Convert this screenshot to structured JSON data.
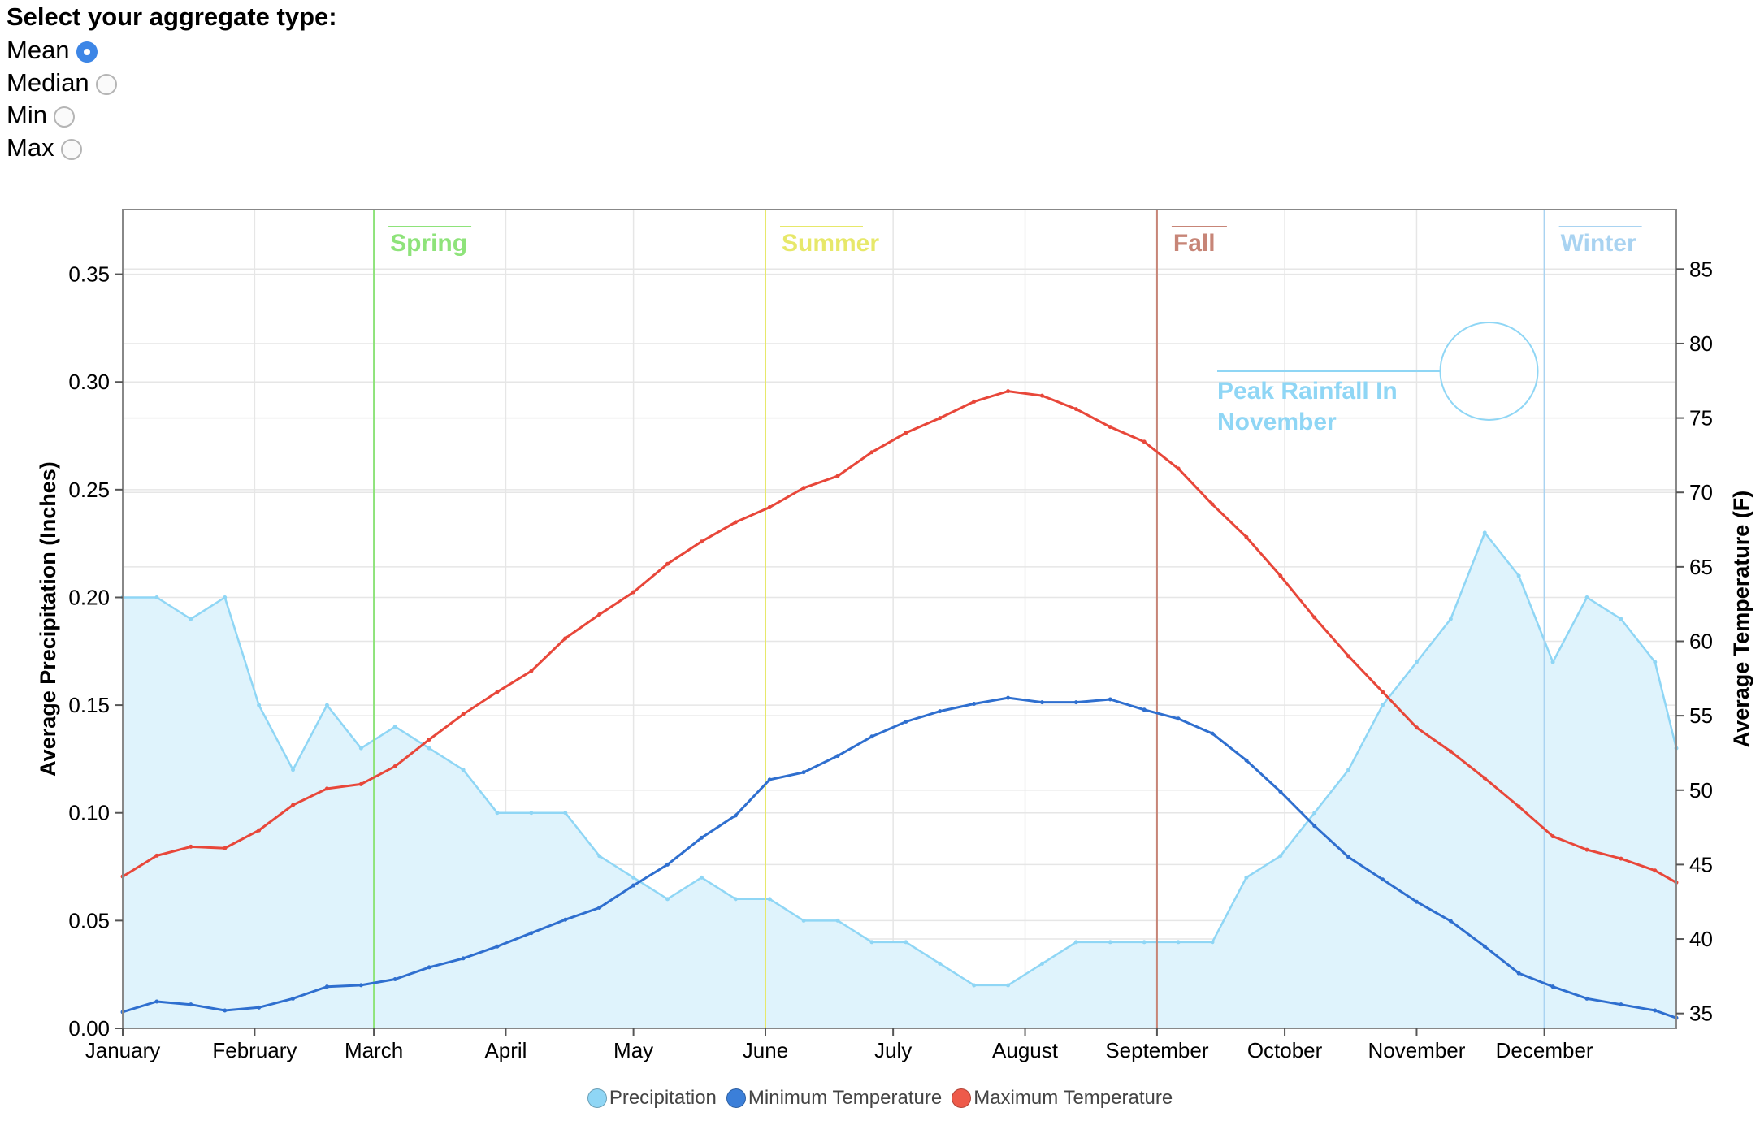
{
  "controls": {
    "title": "Select your aggregate type:",
    "options": [
      {
        "label": "Mean",
        "checked": true
      },
      {
        "label": "Median",
        "checked": false
      },
      {
        "label": "Min",
        "checked": false
      },
      {
        "label": "Max",
        "checked": false
      }
    ]
  },
  "legend": [
    {
      "label": "Precipitation",
      "color": "#8fd6f5"
    },
    {
      "label": "Minimum Temperature",
      "color": "#3b7fd9"
    },
    {
      "label": "Maximum Temperature",
      "color": "#ee5a4a"
    }
  ],
  "colors": {
    "precip_line": "#8fd6f5",
    "precip_fill": "#dff3fc",
    "min_temp": "#2f6fcf",
    "max_temp": "#e8473a",
    "spring": "#8ee37a",
    "summer": "#e7e86a",
    "fall": "#c78577",
    "winter": "#a9d3f1",
    "annotation": "#8fd6f5",
    "grid": "#e6e6e6"
  },
  "chart_data": {
    "type": "line",
    "x_range_days": [
      1,
      366
    ],
    "x_ticks": [
      {
        "label": "January",
        "day": 1
      },
      {
        "label": "February",
        "day": 32
      },
      {
        "label": "March",
        "day": 60
      },
      {
        "label": "April",
        "day": 91
      },
      {
        "label": "May",
        "day": 121
      },
      {
        "label": "June",
        "day": 152
      },
      {
        "label": "July",
        "day": 182
      },
      {
        "label": "August",
        "day": 213
      },
      {
        "label": "September",
        "day": 244
      },
      {
        "label": "October",
        "day": 274
      },
      {
        "label": "November",
        "day": 305
      },
      {
        "label": "December",
        "day": 335
      }
    ],
    "y_left": {
      "label": "Average Precipitation (Inches)",
      "range": [
        0,
        0.38
      ],
      "ticks": [
        "0.00",
        "0.05",
        "0.10",
        "0.15",
        "0.20",
        "0.25",
        "0.30",
        "0.35"
      ]
    },
    "y_right": {
      "label": "Average Temperature (F)",
      "range": [
        34,
        89
      ],
      "ticks": [
        "35",
        "40",
        "45",
        "50",
        "55",
        "60",
        "65",
        "70",
        "75",
        "80",
        "85"
      ]
    },
    "seasons": [
      {
        "label": "Spring",
        "day": 60,
        "color": "#8ee37a"
      },
      {
        "label": "Summer",
        "day": 152,
        "color": "#e7e86a"
      },
      {
        "label": "Fall",
        "day": 244,
        "color": "#c78577"
      },
      {
        "label": "Winter",
        "day": 335,
        "color": "#a9d3f1"
      }
    ],
    "annotation": {
      "text_line1": "Peak Rainfall In",
      "text_line2": "November",
      "day": 322,
      "value": 0.305
    },
    "series": [
      {
        "name": "Precipitation",
        "axis": "left",
        "x": [
          1,
          9,
          17,
          25,
          33,
          41,
          49,
          57,
          65,
          73,
          81,
          89,
          97,
          105,
          113,
          121,
          129,
          137,
          145,
          153,
          161,
          169,
          177,
          185,
          193,
          201,
          209,
          217,
          225,
          233,
          241,
          249,
          257,
          265,
          273,
          281,
          289,
          297,
          305,
          313,
          321,
          329,
          337,
          345,
          353,
          361,
          366
        ],
        "values": [
          0.2,
          0.2,
          0.19,
          0.2,
          0.15,
          0.12,
          0.15,
          0.13,
          0.14,
          0.13,
          0.12,
          0.1,
          0.1,
          0.1,
          0.08,
          0.07,
          0.06,
          0.07,
          0.06,
          0.06,
          0.05,
          0.05,
          0.04,
          0.04,
          0.03,
          0.02,
          0.02,
          0.03,
          0.04,
          0.04,
          0.04,
          0.04,
          0.04,
          0.07,
          0.08,
          0.1,
          0.12,
          0.15,
          0.17,
          0.19,
          0.23,
          0.21,
          0.17,
          0.2,
          0.19,
          0.17,
          0.13
        ]
      },
      {
        "name": "Minimum Temperature",
        "axis": "right",
        "x": [
          1,
          9,
          17,
          25,
          33,
          41,
          49,
          57,
          65,
          73,
          81,
          89,
          97,
          105,
          113,
          121,
          129,
          137,
          145,
          153,
          161,
          169,
          177,
          185,
          193,
          201,
          209,
          217,
          225,
          233,
          241,
          249,
          257,
          265,
          273,
          281,
          289,
          297,
          305,
          313,
          321,
          329,
          337,
          345,
          353,
          361,
          366
        ],
        "values": [
          35.1,
          35.8,
          35.6,
          35.2,
          35.4,
          36.0,
          36.8,
          36.9,
          37.3,
          38.1,
          38.7,
          39.5,
          40.4,
          41.3,
          42.1,
          43.6,
          45.0,
          46.8,
          48.3,
          50.7,
          51.2,
          52.3,
          53.6,
          54.6,
          55.3,
          55.8,
          56.2,
          55.9,
          55.9,
          56.1,
          55.4,
          54.8,
          53.8,
          52.0,
          49.9,
          47.6,
          45.5,
          44.0,
          42.5,
          41.2,
          39.5,
          37.7,
          36.8,
          36.0,
          35.6,
          35.2,
          34.7
        ]
      },
      {
        "name": "Maximum Temperature",
        "axis": "right",
        "x": [
          1,
          9,
          17,
          25,
          33,
          41,
          49,
          57,
          65,
          73,
          81,
          89,
          97,
          105,
          113,
          121,
          129,
          137,
          145,
          153,
          161,
          169,
          177,
          185,
          193,
          201,
          209,
          217,
          225,
          233,
          241,
          249,
          257,
          265,
          273,
          281,
          289,
          297,
          305,
          313,
          321,
          329,
          337,
          345,
          353,
          361,
          366
        ],
        "values": [
          44.2,
          45.6,
          46.2,
          46.1,
          47.3,
          49.0,
          50.1,
          50.4,
          51.6,
          53.4,
          55.1,
          56.6,
          58.0,
          60.2,
          61.8,
          63.3,
          65.2,
          66.7,
          68.0,
          69.0,
          70.3,
          71.1,
          72.7,
          74.0,
          75.0,
          76.1,
          76.8,
          76.5,
          75.6,
          74.4,
          73.4,
          71.6,
          69.2,
          67.0,
          64.4,
          61.6,
          59.0,
          56.6,
          54.2,
          52.6,
          50.8,
          48.9,
          46.9,
          46.0,
          45.4,
          44.6,
          43.8
        ]
      }
    ]
  }
}
